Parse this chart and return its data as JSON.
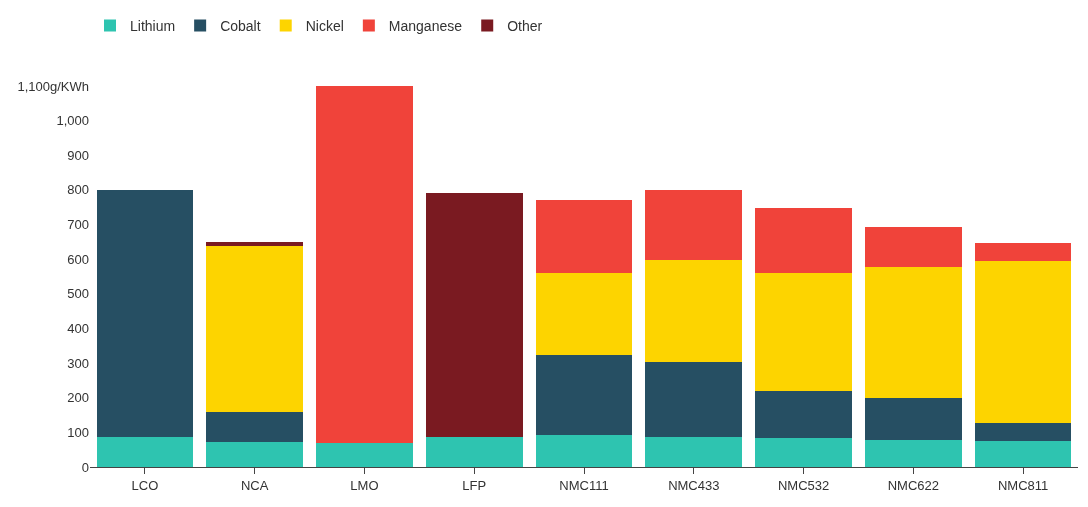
{
  "chart_data": {
    "type": "bar",
    "stacked": true,
    "categories": [
      "LCO",
      "NCA",
      "LMO",
      "LFP",
      "NMC111",
      "NMC433",
      "NMC532",
      "NMC622",
      "NMC811"
    ],
    "series": [
      {
        "name": "Lithium",
        "color": "#2ec4b0",
        "values": [
          87,
          72,
          69,
          86,
          92,
          87,
          83,
          79,
          74
        ]
      },
      {
        "name": "Cobalt",
        "color": "#264f63",
        "values": [
          713,
          86,
          null,
          null,
          231,
          216,
          136,
          120,
          53
        ]
      },
      {
        "name": "Nickel",
        "color": "#fdd400",
        "values": [
          null,
          480,
          null,
          null,
          236,
          294,
          340,
          377,
          467
        ]
      },
      {
        "name": "Manganese",
        "color": "#f0433a",
        "values": [
          null,
          null,
          1031,
          null,
          211,
          203,
          190,
          116,
          52
        ]
      },
      {
        "name": "Other",
        "color": "#7a1a21",
        "values": [
          null,
          12,
          null,
          704,
          null,
          null,
          null,
          null,
          null
        ]
      }
    ],
    "ylim": [
      0,
      1100
    ],
    "yticks": [
      0,
      100,
      200,
      300,
      400,
      500,
      600,
      700,
      800,
      900,
      {
        "value": 1000,
        "label": "1,000"
      },
      {
        "value": 1100,
        "label": "1,100g/KWh"
      }
    ],
    "grid": false,
    "legend": "top left"
  }
}
